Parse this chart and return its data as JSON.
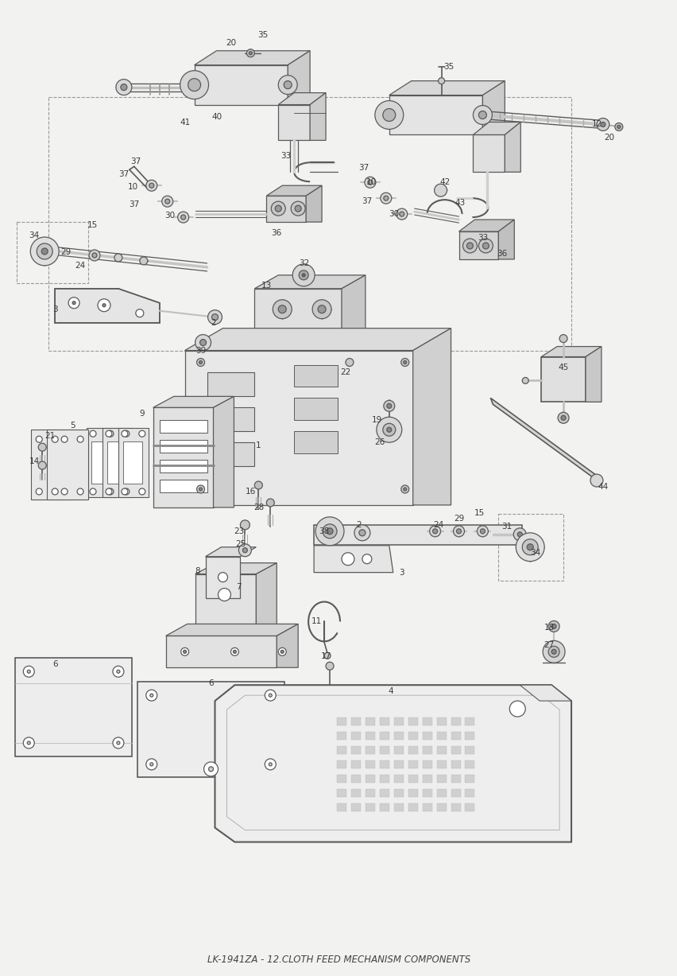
{
  "title": "LK-1941ZA - 12.CLOTH FEED MECHANISM COMPONENTS",
  "bg_color": "#f2f2f0",
  "line_color": "#5a5a5a",
  "text_color": "#3a3a3a",
  "fig_width": 8.53,
  "fig_height": 12.27,
  "dpi": 100,
  "labels": [
    [
      290,
      52,
      "20"
    ],
    [
      330,
      42,
      "35"
    ],
    [
      232,
      152,
      "41"
    ],
    [
      272,
      145,
      "40"
    ],
    [
      360,
      195,
      "33"
    ],
    [
      155,
      218,
      "37"
    ],
    [
      167,
      234,
      "10"
    ],
    [
      168,
      256,
      "37"
    ],
    [
      213,
      270,
      "30"
    ],
    [
      170,
      202,
      "37"
    ],
    [
      348,
      292,
      "36"
    ],
    [
      42,
      295,
      "34"
    ],
    [
      115,
      282,
      "15"
    ],
    [
      82,
      316,
      "29"
    ],
    [
      100,
      333,
      "24"
    ],
    [
      68,
      388,
      "3"
    ],
    [
      268,
      405,
      "2"
    ],
    [
      252,
      440,
      "39"
    ],
    [
      335,
      358,
      "13"
    ],
    [
      383,
      330,
      "32"
    ],
    [
      435,
      468,
      "22"
    ],
    [
      178,
      520,
      "9"
    ],
    [
      62,
      548,
      "21"
    ],
    [
      90,
      535,
      "5"
    ],
    [
      42,
      580,
      "14"
    ],
    [
      325,
      560,
      "1"
    ],
    [
      315,
      618,
      "16"
    ],
    [
      326,
      638,
      "28"
    ],
    [
      300,
      668,
      "23"
    ],
    [
      302,
      684,
      "25"
    ],
    [
      248,
      718,
      "8"
    ],
    [
      300,
      738,
      "7"
    ],
    [
      68,
      836,
      "6"
    ],
    [
      265,
      860,
      "6"
    ],
    [
      475,
      528,
      "19"
    ],
    [
      478,
      556,
      "26"
    ],
    [
      408,
      668,
      "38"
    ],
    [
      452,
      660,
      "2"
    ],
    [
      506,
      720,
      "3"
    ],
    [
      552,
      660,
      "24"
    ],
    [
      578,
      652,
      "29"
    ],
    [
      604,
      645,
      "15"
    ],
    [
      638,
      662,
      "31"
    ],
    [
      675,
      695,
      "34"
    ],
    [
      398,
      782,
      "11"
    ],
    [
      410,
      826,
      "17"
    ],
    [
      492,
      870,
      "4"
    ],
    [
      692,
      790,
      "18"
    ],
    [
      692,
      812,
      "27"
    ],
    [
      710,
      462,
      "45"
    ],
    [
      760,
      612,
      "44"
    ],
    [
      565,
      82,
      "35"
    ],
    [
      752,
      155,
      "12"
    ],
    [
      768,
      172,
      "20"
    ],
    [
      458,
      210,
      "37"
    ],
    [
      468,
      228,
      "10"
    ],
    [
      462,
      252,
      "37"
    ],
    [
      496,
      268,
      "30"
    ],
    [
      560,
      228,
      "42"
    ],
    [
      580,
      254,
      "43"
    ],
    [
      608,
      298,
      "33"
    ],
    [
      632,
      318,
      "36"
    ]
  ]
}
